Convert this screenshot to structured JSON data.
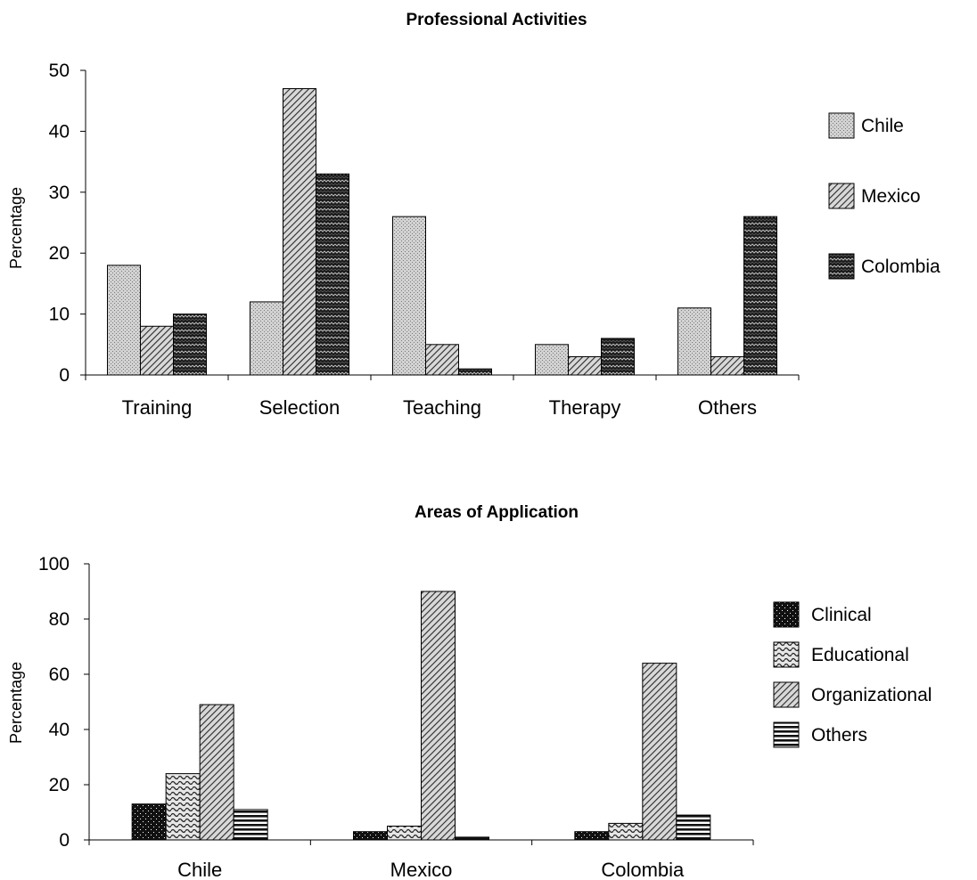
{
  "chart_data": [
    {
      "type": "bar",
      "title": "Professional Activities",
      "xlabel": "",
      "ylabel": "Percentage",
      "ylim": [
        0,
        50
      ],
      "yticks": [
        0,
        10,
        20,
        30,
        40,
        50
      ],
      "categories": [
        "Training",
        "Selection",
        "Teaching",
        "Therapy",
        "Others"
      ],
      "series": [
        {
          "name": "Chile",
          "values": [
            18,
            12,
            26,
            5,
            11
          ],
          "pattern": "dots-light"
        },
        {
          "name": "Mexico",
          "values": [
            8,
            47,
            5,
            3,
            3
          ],
          "pattern": "diag-hatch"
        },
        {
          "name": "Colombia",
          "values": [
            10,
            33,
            1,
            6,
            26
          ],
          "pattern": "dark-zigzag"
        }
      ],
      "legend_placement": "right",
      "grid": false
    },
    {
      "type": "bar",
      "title": "Areas of Application",
      "xlabel": "",
      "ylabel": "Percentage",
      "ylim": [
        0,
        100
      ],
      "yticks": [
        0,
        20,
        40,
        60,
        80,
        100
      ],
      "categories": [
        "Chile",
        "Mexico",
        "Colombia"
      ],
      "series": [
        {
          "name": "Clinical",
          "values": [
            13,
            3,
            3
          ],
          "pattern": "black-dots"
        },
        {
          "name": "Educational",
          "values": [
            24,
            5,
            6
          ],
          "pattern": "waves"
        },
        {
          "name": "Organizational",
          "values": [
            49,
            90,
            64
          ],
          "pattern": "diag-hatch"
        },
        {
          "name": "Others",
          "values": [
            11,
            1,
            9
          ],
          "pattern": "horiz-lines"
        }
      ],
      "legend_placement": "right",
      "grid": false
    }
  ]
}
